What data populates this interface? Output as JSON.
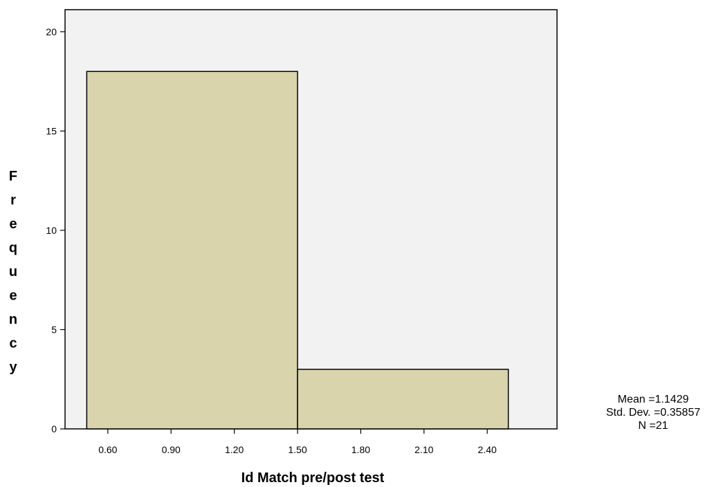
{
  "chart_data": {
    "type": "bar",
    "subtype": "histogram",
    "bins": [
      {
        "from": 0.5,
        "to": 1.5,
        "count": 18
      },
      {
        "from": 1.5,
        "to": 2.5,
        "count": 3
      }
    ],
    "xlabel": "Id Match pre/post test",
    "ylabel": "Frequency",
    "x_ticks": [
      "0.60",
      "0.90",
      "1.20",
      "1.50",
      "1.80",
      "2.10",
      "2.40"
    ],
    "x_tick_values": [
      0.6,
      0.9,
      1.2,
      1.5,
      1.8,
      2.1,
      2.4
    ],
    "y_ticks": [
      "0",
      "5",
      "10",
      "15",
      "20"
    ],
    "y_tick_values": [
      0,
      5,
      10,
      15,
      20
    ],
    "xlim": [
      0.397,
      2.731
    ],
    "ylim": [
      0,
      21.11
    ],
    "grid": false,
    "colors": {
      "bar_fill": "#d9d4ab",
      "bar_stroke": "#000000",
      "plot_background": "#f2f2f2"
    },
    "stats": {
      "mean": "Mean =1.1429",
      "std_dev": "Std. Dev. =0.35857",
      "n": "N =21"
    }
  }
}
